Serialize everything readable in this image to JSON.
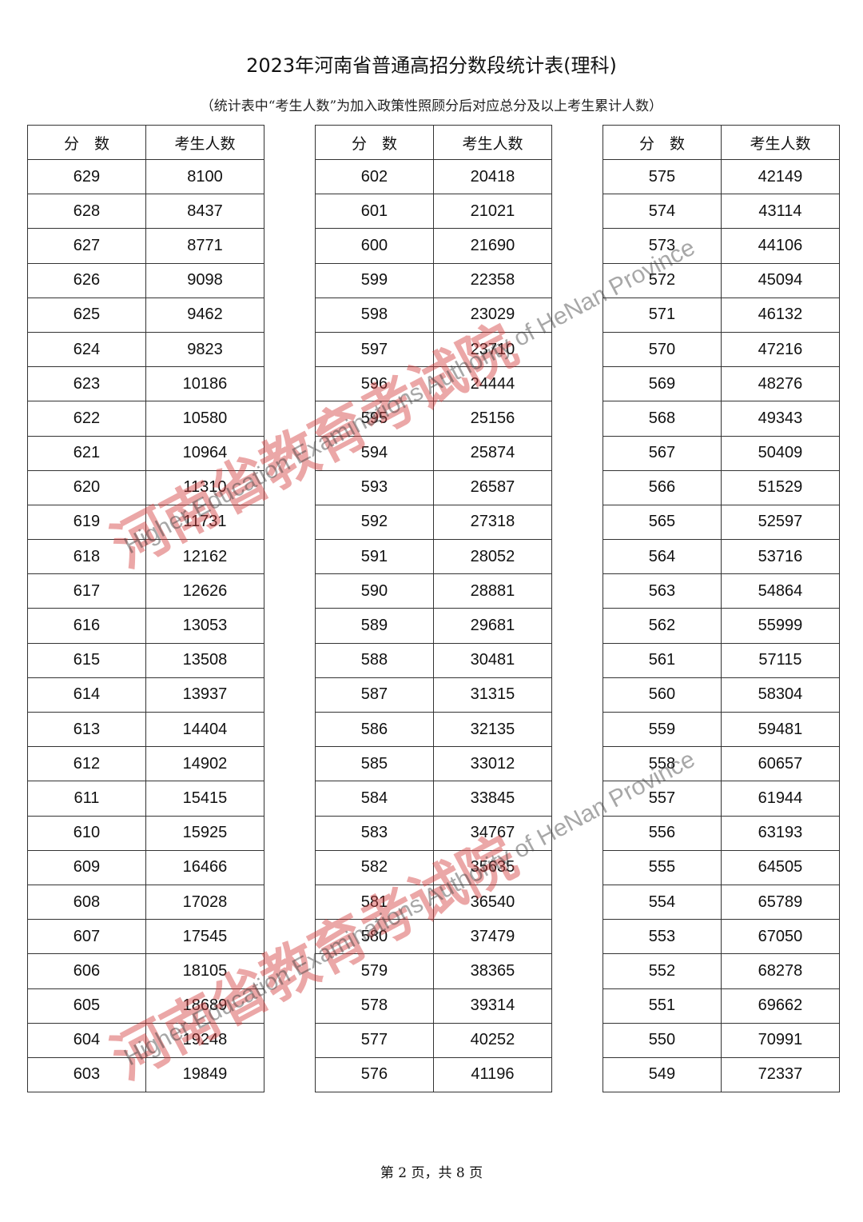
{
  "title": "2023年河南省普通高招分数段统计表(理科)",
  "subtitle": "（统计表中“考生人数”为加入政策性照顾分后对应总分及以上考生累计人数）",
  "headers": {
    "score": "分　数",
    "count": "考生人数"
  },
  "tables": [
    {
      "rows": [
        [
          629,
          8100
        ],
        [
          628,
          8437
        ],
        [
          627,
          8771
        ],
        [
          626,
          9098
        ],
        [
          625,
          9462
        ],
        [
          624,
          9823
        ],
        [
          623,
          10186
        ],
        [
          622,
          10580
        ],
        [
          621,
          10964
        ],
        [
          620,
          11310
        ],
        [
          619,
          11731
        ],
        [
          618,
          12162
        ],
        [
          617,
          12626
        ],
        [
          616,
          13053
        ],
        [
          615,
          13508
        ],
        [
          614,
          13937
        ],
        [
          613,
          14404
        ],
        [
          612,
          14902
        ],
        [
          611,
          15415
        ],
        [
          610,
          15925
        ],
        [
          609,
          16466
        ],
        [
          608,
          17028
        ],
        [
          607,
          17545
        ],
        [
          606,
          18105
        ],
        [
          605,
          18689
        ],
        [
          604,
          19248
        ],
        [
          603,
          19849
        ]
      ]
    },
    {
      "rows": [
        [
          602,
          20418
        ],
        [
          601,
          21021
        ],
        [
          600,
          21690
        ],
        [
          599,
          22358
        ],
        [
          598,
          23029
        ],
        [
          597,
          23710
        ],
        [
          596,
          24444
        ],
        [
          595,
          25156
        ],
        [
          594,
          25874
        ],
        [
          593,
          26587
        ],
        [
          592,
          27318
        ],
        [
          591,
          28052
        ],
        [
          590,
          28881
        ],
        [
          589,
          29681
        ],
        [
          588,
          30481
        ],
        [
          587,
          31315
        ],
        [
          586,
          32135
        ],
        [
          585,
          33012
        ],
        [
          584,
          33845
        ],
        [
          583,
          34767
        ],
        [
          582,
          35635
        ],
        [
          581,
          36540
        ],
        [
          580,
          37479
        ],
        [
          579,
          38365
        ],
        [
          578,
          39314
        ],
        [
          577,
          40252
        ],
        [
          576,
          41196
        ]
      ]
    },
    {
      "rows": [
        [
          575,
          42149
        ],
        [
          574,
          43114
        ],
        [
          573,
          44106
        ],
        [
          572,
          45094
        ],
        [
          571,
          46132
        ],
        [
          570,
          47216
        ],
        [
          569,
          48276
        ],
        [
          568,
          49343
        ],
        [
          567,
          50409
        ],
        [
          566,
          51529
        ],
        [
          565,
          52597
        ],
        [
          564,
          53716
        ],
        [
          563,
          54864
        ],
        [
          562,
          55999
        ],
        [
          561,
          57115
        ],
        [
          560,
          58304
        ],
        [
          559,
          59481
        ],
        [
          558,
          60657
        ],
        [
          557,
          61944
        ],
        [
          556,
          63193
        ],
        [
          555,
          64505
        ],
        [
          554,
          65789
        ],
        [
          553,
          67050
        ],
        [
          552,
          68278
        ],
        [
          551,
          69662
        ],
        [
          550,
          70991
        ],
        [
          549,
          72337
        ]
      ]
    }
  ],
  "watermark": {
    "cn": "河南省教育考试院",
    "logo": "HEEA",
    "en": "Higher Education Examinations Authority of HeNan Province",
    "color": "#d23c3c"
  },
  "footer": "第 2 页，共 8 页"
}
